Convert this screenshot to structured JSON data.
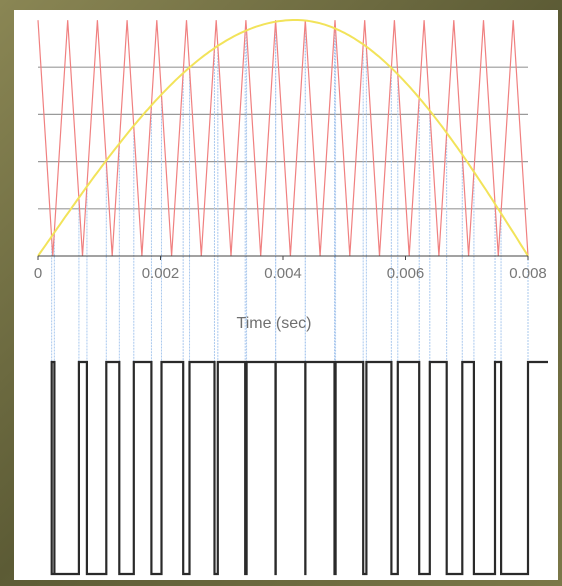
{
  "chart_data": {
    "type": "line",
    "title": "",
    "xlabel": "Time  (sec)",
    "ylabel": "",
    "xlim": [
      0,
      0.008
    ],
    "x_ticks": [
      "0",
      "0.002",
      "0.004",
      "0.006",
      "0.008"
    ],
    "grid": "horizontal",
    "carrier_frequency_hz": 2062.5,
    "series": [
      {
        "kind": "reference",
        "shape": "half-sine",
        "color": "#f2e35a",
        "x": [
          0,
          0.001,
          0.002,
          0.003,
          0.004,
          0.0042,
          0.005,
          0.006,
          0.007,
          0.008
        ],
        "y": [
          0.0,
          0.4,
          0.74,
          0.95,
          1.0,
          1.0,
          0.95,
          0.74,
          0.4,
          0.0
        ]
      },
      {
        "kind": "carrier",
        "shape": "triangle",
        "color": "#f08080",
        "cycles": 16.5,
        "y_range": [
          0,
          1
        ]
      },
      {
        "kind": "pwm-output",
        "shape": "pulse",
        "color": "#2a2a2a",
        "levels": [
          0,
          1
        ]
      }
    ],
    "colors": {
      "grid": "#9a9a9a",
      "axis": "#444444",
      "projection": "#a9c8ee"
    }
  }
}
